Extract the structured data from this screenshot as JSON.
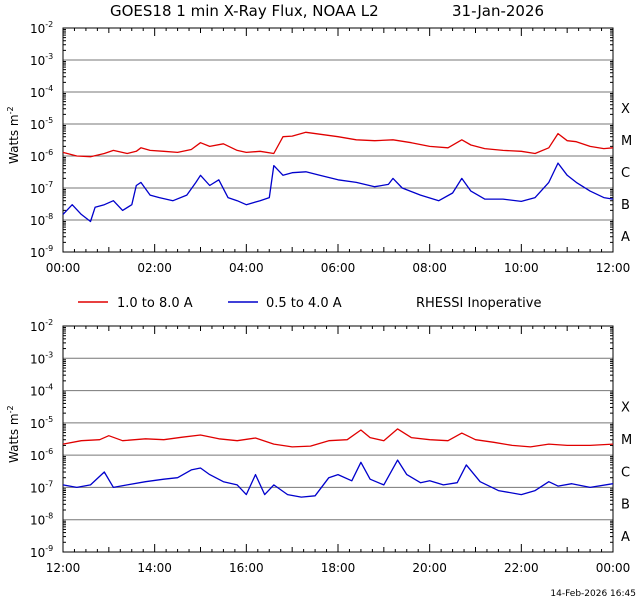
{
  "title": {
    "satellite_text": "GOES18 1 min X-Ray Flux, NOAA L2",
    "date": "31-Jan-2026"
  },
  "legend": {
    "long_label": "1.0 to 8.0 A",
    "short_label": "0.5 to 4.0 A",
    "note": "RHESSI Inoperative"
  },
  "colors": {
    "long": "#e00000",
    "short": "#0000cc",
    "grid": "#777777",
    "axes": "#000000"
  },
  "footer": {
    "timestamp": "14-Feb-2026 16:45"
  },
  "chart_data": [
    {
      "type": "line",
      "title": "GOES18 1 min X-Ray Flux, NOAA L2 31-Jan-2026",
      "ylabel": "Watts m-2",
      "ylabel_base": "Watts m",
      "ylabel_exp": "-2",
      "yscale": "log",
      "ylim_exp": [
        -9,
        -2
      ],
      "ytick_exps": [
        "-2",
        "-3",
        "-4",
        "-5",
        "-6",
        "-7",
        "-8",
        "-9"
      ],
      "class_labels": [
        "X",
        "M",
        "C",
        "B",
        "A"
      ],
      "xlim_hours": [
        0,
        12
      ],
      "xtick_labels": [
        "00:00",
        "02:00",
        "04:00",
        "06:00",
        "08:00",
        "10:00",
        "12:00"
      ],
      "grid": true,
      "series": [
        {
          "name": "1.0 to 8.0 A",
          "color": "#e00000",
          "x": [
            0,
            0.3,
            0.6,
            0.9,
            1.1,
            1.4,
            1.6,
            1.7,
            1.9,
            2.2,
            2.5,
            2.8,
            3.0,
            3.2,
            3.5,
            3.8,
            4.0,
            4.3,
            4.6,
            4.8,
            5.0,
            5.3,
            5.6,
            6.0,
            6.4,
            6.8,
            7.2,
            7.6,
            8.0,
            8.4,
            8.7,
            8.9,
            9.2,
            9.6,
            10.0,
            10.3,
            10.6,
            10.8,
            11.0,
            11.2,
            11.5,
            11.8,
            12.0
          ],
          "y": [
            1.3e-06,
            1e-06,
            9.5e-07,
            1.2e-06,
            1.5e-06,
            1.2e-06,
            1.4e-06,
            1.8e-06,
            1.5e-06,
            1.4e-06,
            1.3e-06,
            1.6e-06,
            2.6e-06,
            2e-06,
            2.4e-06,
            1.5e-06,
            1.3e-06,
            1.4e-06,
            1.2e-06,
            4e-06,
            4.2e-06,
            5.5e-06,
            4.8e-06,
            4e-06,
            3.2e-06,
            3e-06,
            3.2e-06,
            2.6e-06,
            2e-06,
            1.8e-06,
            3.2e-06,
            2.2e-06,
            1.7e-06,
            1.5e-06,
            1.4e-06,
            1.2e-06,
            1.8e-06,
            5e-06,
            3e-06,
            2.8e-06,
            2e-06,
            1.7e-06,
            1.8e-06
          ]
        },
        {
          "name": "0.5 to 4.0 A",
          "color": "#0000cc",
          "x": [
            0,
            0.2,
            0.4,
            0.6,
            0.7,
            0.9,
            1.1,
            1.3,
            1.5,
            1.6,
            1.7,
            1.9,
            2.1,
            2.4,
            2.7,
            2.9,
            3.0,
            3.2,
            3.4,
            3.6,
            3.8,
            4.0,
            4.3,
            4.5,
            4.6,
            4.8,
            5.0,
            5.3,
            5.6,
            6.0,
            6.4,
            6.8,
            7.1,
            7.2,
            7.4,
            7.8,
            8.2,
            8.5,
            8.7,
            8.9,
            9.2,
            9.6,
            10.0,
            10.3,
            10.6,
            10.8,
            11.0,
            11.2,
            11.5,
            11.8,
            12.0
          ],
          "y": [
            1.5e-08,
            3e-08,
            1.5e-08,
            9e-09,
            2.5e-08,
            3e-08,
            4e-08,
            2e-08,
            3e-08,
            1.2e-07,
            1.5e-07,
            6e-08,
            5e-08,
            4e-08,
            6e-08,
            1.5e-07,
            2.5e-07,
            1.2e-07,
            1.8e-07,
            5e-08,
            4e-08,
            3e-08,
            4e-08,
            5e-08,
            5e-07,
            2.5e-07,
            3e-07,
            3.2e-07,
            2.5e-07,
            1.8e-07,
            1.5e-07,
            1.1e-07,
            1.3e-07,
            2e-07,
            1e-07,
            6e-08,
            4e-08,
            7e-08,
            2e-07,
            8e-08,
            4.5e-08,
            4.5e-08,
            3.8e-08,
            5e-08,
            1.5e-07,
            6e-07,
            2.5e-07,
            1.5e-07,
            8e-08,
            5e-08,
            4.5e-08
          ]
        }
      ]
    },
    {
      "type": "line",
      "ylabel": "Watts m-2",
      "ylabel_base": "Watts m",
      "ylabel_exp": "-2",
      "yscale": "log",
      "ylim_exp": [
        -9,
        -2
      ],
      "ytick_exps": [
        "-2",
        "-3",
        "-4",
        "-5",
        "-6",
        "-7",
        "-8",
        "-9"
      ],
      "class_labels": [
        "X",
        "M",
        "C",
        "B",
        "A"
      ],
      "xlim_hours": [
        12,
        24
      ],
      "xtick_labels": [
        "12:00",
        "14:00",
        "16:00",
        "18:00",
        "20:00",
        "22:00",
        "00:00"
      ],
      "grid": true,
      "series": [
        {
          "name": "1.0 to 8.0 A",
          "color": "#e00000",
          "x": [
            12,
            12.4,
            12.8,
            13.0,
            13.3,
            13.8,
            14.2,
            14.6,
            15.0,
            15.4,
            15.8,
            16.2,
            16.6,
            17.0,
            17.4,
            17.8,
            18.2,
            18.5,
            18.7,
            19.0,
            19.3,
            19.6,
            20.0,
            20.4,
            20.7,
            21.0,
            21.4,
            21.8,
            22.2,
            22.6,
            23.0,
            23.5,
            24
          ],
          "y": [
            2.2e-06,
            2.8e-06,
            3e-06,
            4e-06,
            2.8e-06,
            3.2e-06,
            3e-06,
            3.6e-06,
            4.2e-06,
            3.2e-06,
            2.8e-06,
            3.4e-06,
            2.2e-06,
            1.8e-06,
            1.9e-06,
            2.8e-06,
            3e-06,
            6e-06,
            3.5e-06,
            2.8e-06,
            6.5e-06,
            3.5e-06,
            3e-06,
            2.8e-06,
            4.8e-06,
            3e-06,
            2.5e-06,
            2e-06,
            1.8e-06,
            2.2e-06,
            2e-06,
            2e-06,
            2.2e-06
          ]
        },
        {
          "name": "0.5 to 4.0 A",
          "color": "#0000cc",
          "x": [
            12,
            12.3,
            12.6,
            12.9,
            13.1,
            13.4,
            13.8,
            14.2,
            14.5,
            14.8,
            15.0,
            15.2,
            15.5,
            15.8,
            16.0,
            16.2,
            16.4,
            16.6,
            16.9,
            17.2,
            17.5,
            17.8,
            18.0,
            18.3,
            18.5,
            18.7,
            19.0,
            19.3,
            19.5,
            19.8,
            20.0,
            20.3,
            20.6,
            20.8,
            21.1,
            21.5,
            22.0,
            22.3,
            22.6,
            22.8,
            23.1,
            23.5,
            24
          ],
          "y": [
            1.2e-07,
            1e-07,
            1.2e-07,
            3e-07,
            1e-07,
            1.2e-07,
            1.5e-07,
            1.8e-07,
            2e-07,
            3.5e-07,
            4e-07,
            2.5e-07,
            1.5e-07,
            1.2e-07,
            6e-08,
            2.5e-07,
            6e-08,
            1.2e-07,
            6e-08,
            5e-08,
            5.5e-08,
            2e-07,
            2.5e-07,
            1.6e-07,
            6e-07,
            1.8e-07,
            1.2e-07,
            7e-07,
            2.5e-07,
            1.4e-07,
            1.6e-07,
            1.2e-07,
            1.4e-07,
            5e-07,
            1.5e-07,
            8e-08,
            6e-08,
            8e-08,
            1.5e-07,
            1.1e-07,
            1.3e-07,
            1e-07,
            1.3e-07
          ]
        }
      ]
    }
  ]
}
